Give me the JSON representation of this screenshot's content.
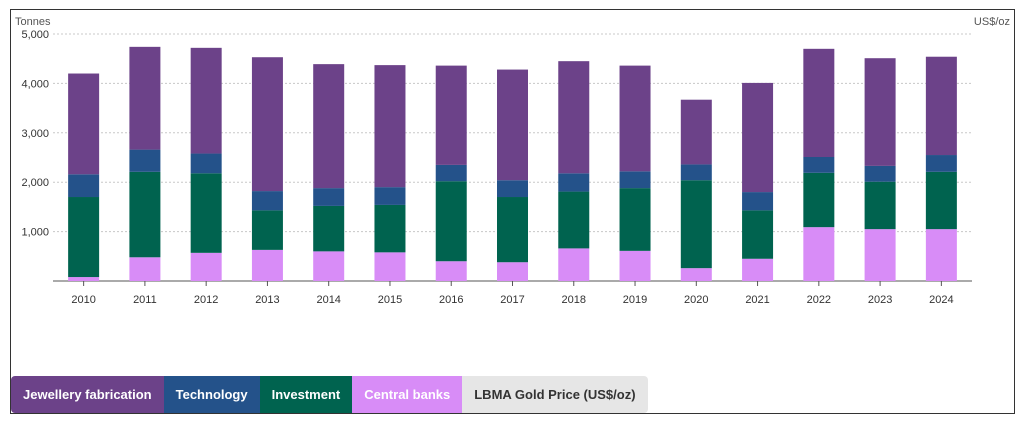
{
  "chart_data": {
    "type": "bar",
    "stacked": true,
    "left_axis_unit": "Tonnes",
    "right_axis_unit": "US$/oz",
    "ylim": [
      0,
      5000
    ],
    "yticks": [
      "",
      "1,000",
      "2,000",
      "3,000",
      "4,000",
      "5,000"
    ],
    "ytick_values": [
      0,
      1000,
      2000,
      3000,
      4000,
      5000
    ],
    "grid": true,
    "categories": [
      "2010",
      "2011",
      "2012",
      "2013",
      "2014",
      "2015",
      "2016",
      "2017",
      "2018",
      "2019",
      "2020",
      "2021",
      "2022",
      "2023",
      "2024"
    ],
    "series": [
      {
        "name": "Central banks",
        "color": "#d88cf7",
        "values": [
          80,
          480,
          570,
          630,
          600,
          580,
          400,
          380,
          660,
          610,
          260,
          450,
          1090,
          1050,
          1050
        ]
      },
      {
        "name": "Investment",
        "color": "#00634f",
        "values": [
          1620,
          1730,
          1610,
          800,
          920,
          960,
          1620,
          1320,
          1150,
          1270,
          1780,
          980,
          1100,
          960,
          1160
        ]
      },
      {
        "name": "Technology",
        "color": "#24528a",
        "values": [
          460,
          450,
          400,
          390,
          360,
          360,
          330,
          340,
          370,
          340,
          320,
          370,
          320,
          320,
          340
        ]
      },
      {
        "name": "Jewellery fabrication",
        "color": "#6c4289",
        "values": [
          2040,
          2080,
          2140,
          2710,
          2510,
          2470,
          2010,
          2240,
          2270,
          2140,
          1310,
          2210,
          2190,
          2180,
          1990
        ]
      }
    ],
    "legend": [
      {
        "label": "Jewellery fabrication",
        "bg": "#6c4289",
        "fg": "#ffffff"
      },
      {
        "label": "Technology",
        "bg": "#24528a",
        "fg": "#ffffff"
      },
      {
        "label": "Investment",
        "bg": "#00634f",
        "fg": "#ffffff"
      },
      {
        "label": "Central banks",
        "bg": "#d88cf7",
        "fg": "#ffffff"
      },
      {
        "label": "LBMA Gold Price (US$/oz)",
        "bg": "#e6e6e6",
        "fg": "#333333"
      }
    ]
  }
}
